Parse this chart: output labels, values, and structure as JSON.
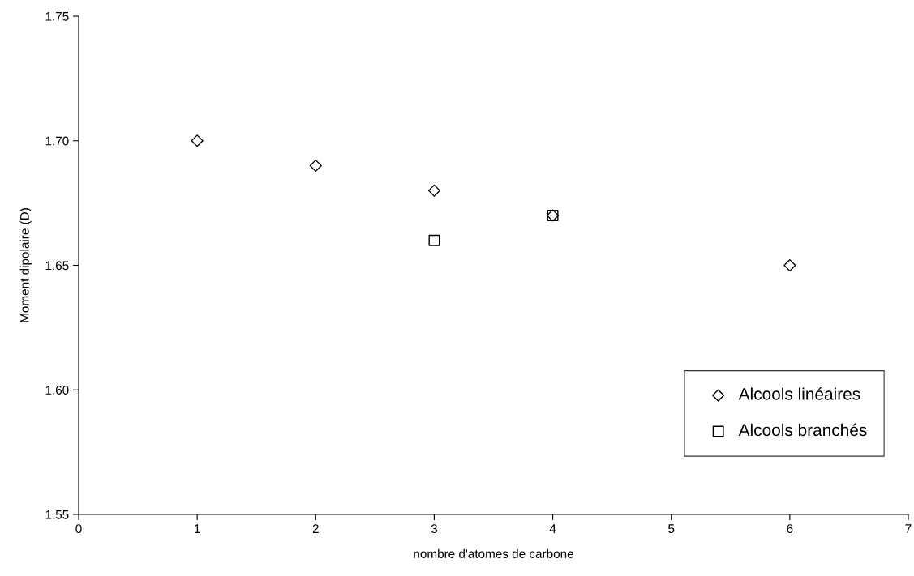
{
  "chart_data": {
    "type": "scatter",
    "xlabel": "nombre d'atomes de carbone",
    "ylabel": "Moment dipolaire (D)",
    "xlim": [
      0,
      7
    ],
    "xticks": [
      0,
      1,
      2,
      3,
      4,
      5,
      6,
      7
    ],
    "ylim": [
      1.55,
      1.75
    ],
    "yticks": [
      {
        "value": 1.55,
        "label": "1.55"
      },
      {
        "value": 1.6,
        "label": "1.60"
      },
      {
        "value": 1.65,
        "label": "1.65"
      },
      {
        "value": 1.7,
        "label": "1.70"
      },
      {
        "value": 1.75,
        "label": "1.75"
      }
    ],
    "grid": false,
    "legend": "bottom right",
    "series": [
      {
        "name": "Alcools linéaires",
        "color": "#000000",
        "marker": "diamond",
        "x": [
          1,
          2,
          3,
          4,
          6
        ],
        "values": [
          1.7,
          1.69,
          1.68,
          1.67,
          1.65
        ]
      },
      {
        "name": "Alcools branchés",
        "color": "#000000",
        "marker": "square",
        "x": [
          3,
          4
        ],
        "values": [
          1.66,
          1.67
        ]
      }
    ]
  }
}
